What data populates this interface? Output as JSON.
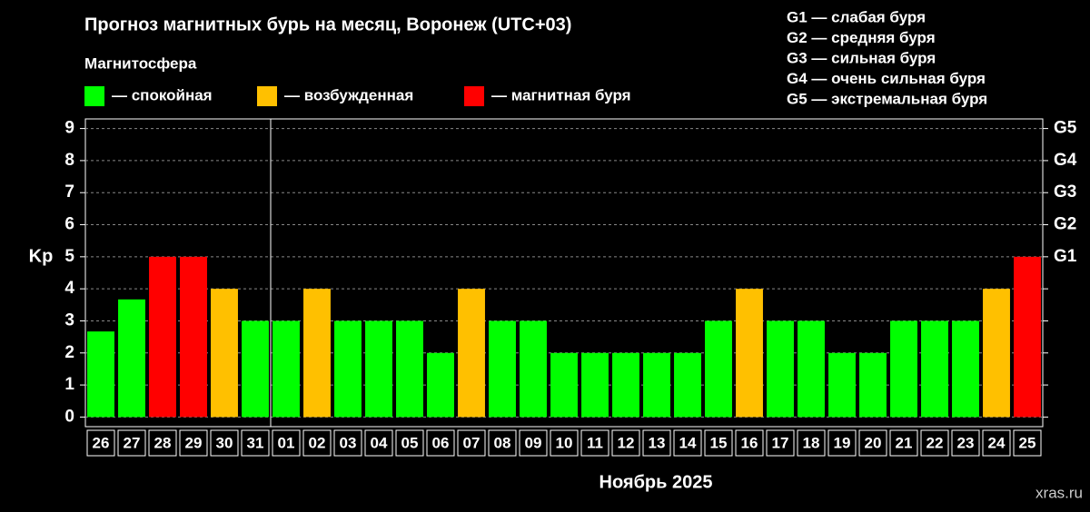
{
  "chart_data": {
    "type": "bar",
    "title": "Прогноз магнитных бурь на месяц, Воронеж (UTC+03)",
    "legend_title": "Магнитосфера",
    "legend": [
      {
        "name": "— спокойная",
        "color": "#00ff00"
      },
      {
        "name": "— возбужденная",
        "color": "#ffc000"
      },
      {
        "name": "— магнитная буря",
        "color": "#ff0000"
      }
    ],
    "scale_notes": [
      "G1 — слабая буря",
      "G2 — средняя буря",
      "G3 — сильная буря",
      "G4 — очень сильная буря",
      "G5 — экстремальная буря"
    ],
    "xlabel": "Ноябрь 2025",
    "ylabel": "Kp",
    "categories": [
      "26",
      "27",
      "28",
      "29",
      "30",
      "31",
      "01",
      "02",
      "03",
      "04",
      "05",
      "06",
      "07",
      "08",
      "09",
      "10",
      "11",
      "12",
      "13",
      "14",
      "15",
      "16",
      "17",
      "18",
      "19",
      "20",
      "21",
      "22",
      "23",
      "24",
      "25"
    ],
    "values": [
      2.67,
      3.67,
      5,
      5,
      4,
      3,
      3,
      4,
      3,
      3,
      3,
      2,
      4,
      3,
      3,
      2,
      2,
      2,
      2,
      2,
      3,
      4,
      3,
      3,
      2,
      2,
      3,
      3,
      3,
      4,
      5
    ],
    "colors": [
      "#00ff00",
      "#00ff00",
      "#ff0000",
      "#ff0000",
      "#ffc000",
      "#00ff00",
      "#00ff00",
      "#ffc000",
      "#00ff00",
      "#00ff00",
      "#00ff00",
      "#00ff00",
      "#ffc000",
      "#00ff00",
      "#00ff00",
      "#00ff00",
      "#00ff00",
      "#00ff00",
      "#00ff00",
      "#00ff00",
      "#00ff00",
      "#ffc000",
      "#00ff00",
      "#00ff00",
      "#00ff00",
      "#00ff00",
      "#00ff00",
      "#00ff00",
      "#00ff00",
      "#ffc000",
      "#ff0000"
    ],
    "ylim": [
      -0.3,
      9.3
    ],
    "yticks": [
      0,
      1,
      2,
      3,
      4,
      5,
      6,
      7,
      8,
      9
    ],
    "y2lim": [
      -0.3,
      9.3
    ],
    "y2ticks": [
      {
        "value": 5,
        "label": "G1"
      },
      {
        "value": 6,
        "label": "G2"
      },
      {
        "value": 7,
        "label": "G3"
      },
      {
        "value": 8,
        "label": "G4"
      },
      {
        "value": 9,
        "label": "G5"
      }
    ],
    "grid": true,
    "watermark": "xras.ru"
  }
}
